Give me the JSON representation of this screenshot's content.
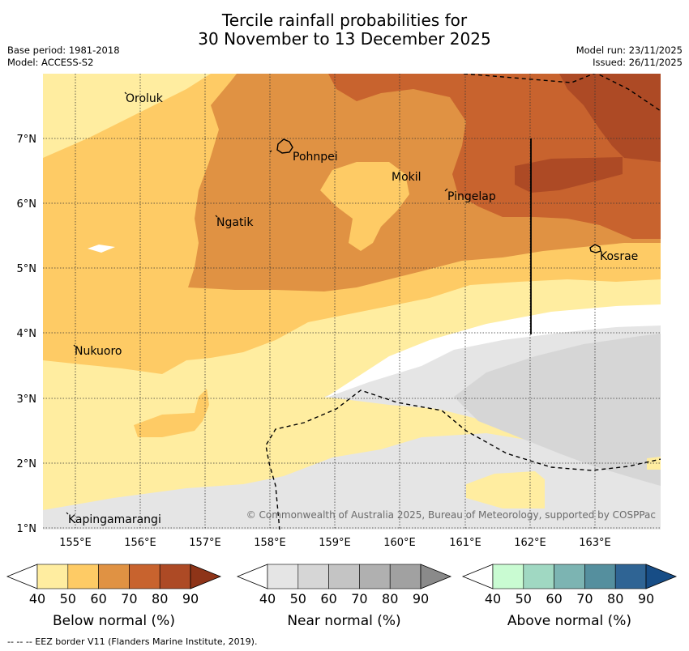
{
  "header": {
    "title_line1": "Tercile rainfall probabilities for",
    "title_line2": "30 November to 13 December 2025",
    "base_period": "Base period: 1981-2018",
    "model": "Model: ACCESS-S2",
    "model_run": "Model run: 23/11/2025",
    "issued": "Issued: 26/11/2025"
  },
  "map": {
    "lon_ticks": [
      "155°E",
      "156°E",
      "157°E",
      "158°E",
      "159°E",
      "160°E",
      "161°E",
      "162°E",
      "163°E"
    ],
    "lat_ticks": [
      "7°N",
      "6°N",
      "5°N",
      "4°N",
      "3°N",
      "2°N",
      "1°N"
    ],
    "places": {
      "oroluk": "Oroluk",
      "pohnpei": "Pohnpei",
      "mokil": "Mokil",
      "pingelap": "Pingelap",
      "ngatik": "Ngatik",
      "kosrae": "Kosrae",
      "nukuoro": "Nukuoro",
      "kapingamarangi": "Kapingamarangi"
    },
    "copyright": "© Commonwealth of Australia 2025, Bureau of Meteorology, supported by COSPPac"
  },
  "legend": {
    "below": {
      "title": "Below normal (%)",
      "ticks": [
        "40",
        "50",
        "60",
        "70",
        "80",
        "90"
      ],
      "colors": [
        "#ffeda0",
        "#fecb65",
        "#e09243",
        "#c8632e",
        "#ad4a25",
        "#8e3418"
      ]
    },
    "near": {
      "title": "Near normal (%)",
      "ticks": [
        "40",
        "50",
        "60",
        "70",
        "80",
        "90"
      ],
      "colors": [
        "#e5e5e5",
        "#d6d6d6",
        "#c4c4c4",
        "#b0b0b0",
        "#a1a1a1",
        "#8a8a8a"
      ]
    },
    "above": {
      "title": "Above normal (%)",
      "ticks": [
        "40",
        "50",
        "60",
        "70",
        "80",
        "90"
      ],
      "colors": [
        "#c9fbd2",
        "#a0d8c2",
        "#7cb4b2",
        "#558f9e",
        "#2f6494",
        "#174d86"
      ]
    }
  },
  "footnote": "--  --  -- EEZ border V11 (Flanders Marine Institute, 2019)."
}
